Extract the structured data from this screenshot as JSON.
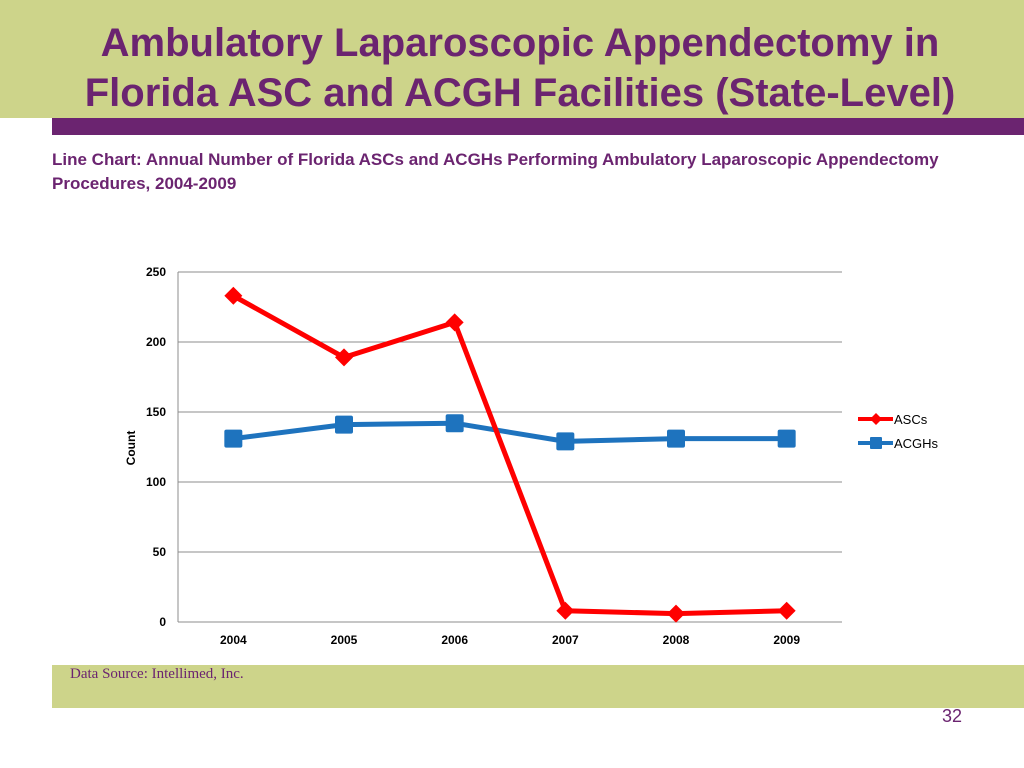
{
  "slide": {
    "title": "Ambulatory Laparoscopic Appendectomy in Florida ASC and ACGH Facilities (State-Level)",
    "subtitle": "Line Chart: Annual Number of Florida ASCs and ACGHs Performing Ambulatory Laparoscopic Appendectomy Procedures, 2004-2009",
    "source": "Data Source: Intellimed, Inc.",
    "page_number": "32"
  },
  "colors": {
    "band": "#cdd48a",
    "accent": "#6b2470",
    "ascs": "#ff0000",
    "acghs": "#1e73be"
  },
  "chart_data": {
    "type": "line",
    "title": "",
    "xlabel": "",
    "ylabel": "Count",
    "categories": [
      "2004",
      "2005",
      "2006",
      "2007",
      "2008",
      "2009"
    ],
    "ylim": [
      0,
      250
    ],
    "yticks": [
      0,
      50,
      100,
      150,
      200,
      250
    ],
    "grid": true,
    "legend": "right",
    "series": [
      {
        "name": "ASCs",
        "color": "#ff0000",
        "marker": "diamond",
        "values": [
          233,
          189,
          214,
          8,
          6,
          8
        ]
      },
      {
        "name": "ACGHs",
        "color": "#1e73be",
        "marker": "square",
        "values": [
          131,
          141,
          142,
          129,
          131,
          131
        ]
      }
    ]
  }
}
